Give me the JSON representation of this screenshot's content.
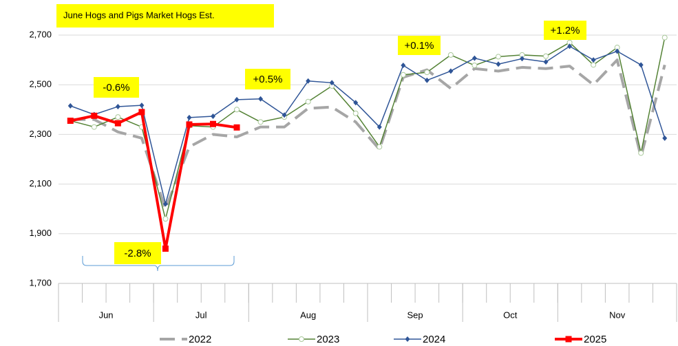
{
  "chart_data": {
    "type": "line",
    "title": "June Hogs and Pigs Market Hogs Est.",
    "categories": [
      null,
      null,
      null,
      null,
      null,
      null,
      null,
      null,
      null,
      null,
      null,
      null,
      null,
      null,
      null,
      null,
      null,
      null,
      null,
      null,
      null,
      null,
      null,
      null,
      null,
      null
    ],
    "month_groups": [
      {
        "label": "Jun",
        "start": 0,
        "end": 3
      },
      {
        "label": "Jul",
        "start": 4,
        "end": 7
      },
      {
        "label": "Aug",
        "start": 8,
        "end": 12
      },
      {
        "label": "Sep",
        "start": 13,
        "end": 16
      },
      {
        "label": "Oct",
        "start": 17,
        "end": 20
      },
      {
        "label": "Nov",
        "start": 21,
        "end": 25
      }
    ],
    "ylim": [
      1700,
      2700
    ],
    "yticks": [
      {
        "value": 1700,
        "label": "1,700"
      },
      {
        "value": 1900,
        "label": "1,900"
      },
      {
        "value": 2100,
        "label": "2,100"
      },
      {
        "value": 2300,
        "label": "2,300"
      },
      {
        "value": 2500,
        "label": "2,500"
      },
      {
        "value": 2700,
        "label": "2,700"
      }
    ],
    "grid": true,
    "legend": "bottom",
    "series": [
      {
        "name": "2022",
        "color": "#a6a6a6",
        "marker": "none",
        "dashed": true,
        "values": [
          2360,
          2360,
          2310,
          2285,
          2000,
          2250,
          2300,
          2290,
          2330,
          2330,
          2405,
          2410,
          2350,
          2240,
          2530,
          2560,
          2485,
          2565,
          2555,
          2570,
          2565,
          2575,
          2500,
          2600,
          2210,
          2580
        ]
      },
      {
        "name": "2023",
        "color": "#548235",
        "marker": "circle",
        "dashed": false,
        "values": [
          2355,
          2330,
          2370,
          2330,
          1960,
          2335,
          2330,
          2400,
          2350,
          2370,
          2432,
          2495,
          2385,
          2250,
          2540,
          2550,
          2620,
          2578,
          2613,
          2620,
          2615,
          2670,
          2580,
          2650,
          2225,
          2690
        ]
      },
      {
        "name": "2024",
        "color": "#2f5597",
        "marker": "diamond",
        "dashed": false,
        "values": [
          2415,
          2380,
          2412,
          2417,
          2020,
          2368,
          2373,
          2440,
          2443,
          2378,
          2515,
          2508,
          2428,
          2330,
          2578,
          2518,
          2555,
          2607,
          2583,
          2605,
          2592,
          2655,
          2600,
          2635,
          2580,
          2285
        ]
      },
      {
        "name": "2025",
        "color": "#ff0000",
        "marker": "square",
        "dashed": false,
        "values": [
          2355,
          2375,
          2345,
          2390,
          1840,
          2340,
          2342,
          2328,
          null,
          null,
          null,
          null,
          null,
          null,
          null,
          null,
          null,
          null,
          null,
          null,
          null,
          null,
          null,
          null,
          null,
          null
        ]
      }
    ],
    "annotations": [
      "-0.6%",
      "-2.8%",
      "+0.5%",
      "+0.1%",
      "+1.2%"
    ]
  }
}
